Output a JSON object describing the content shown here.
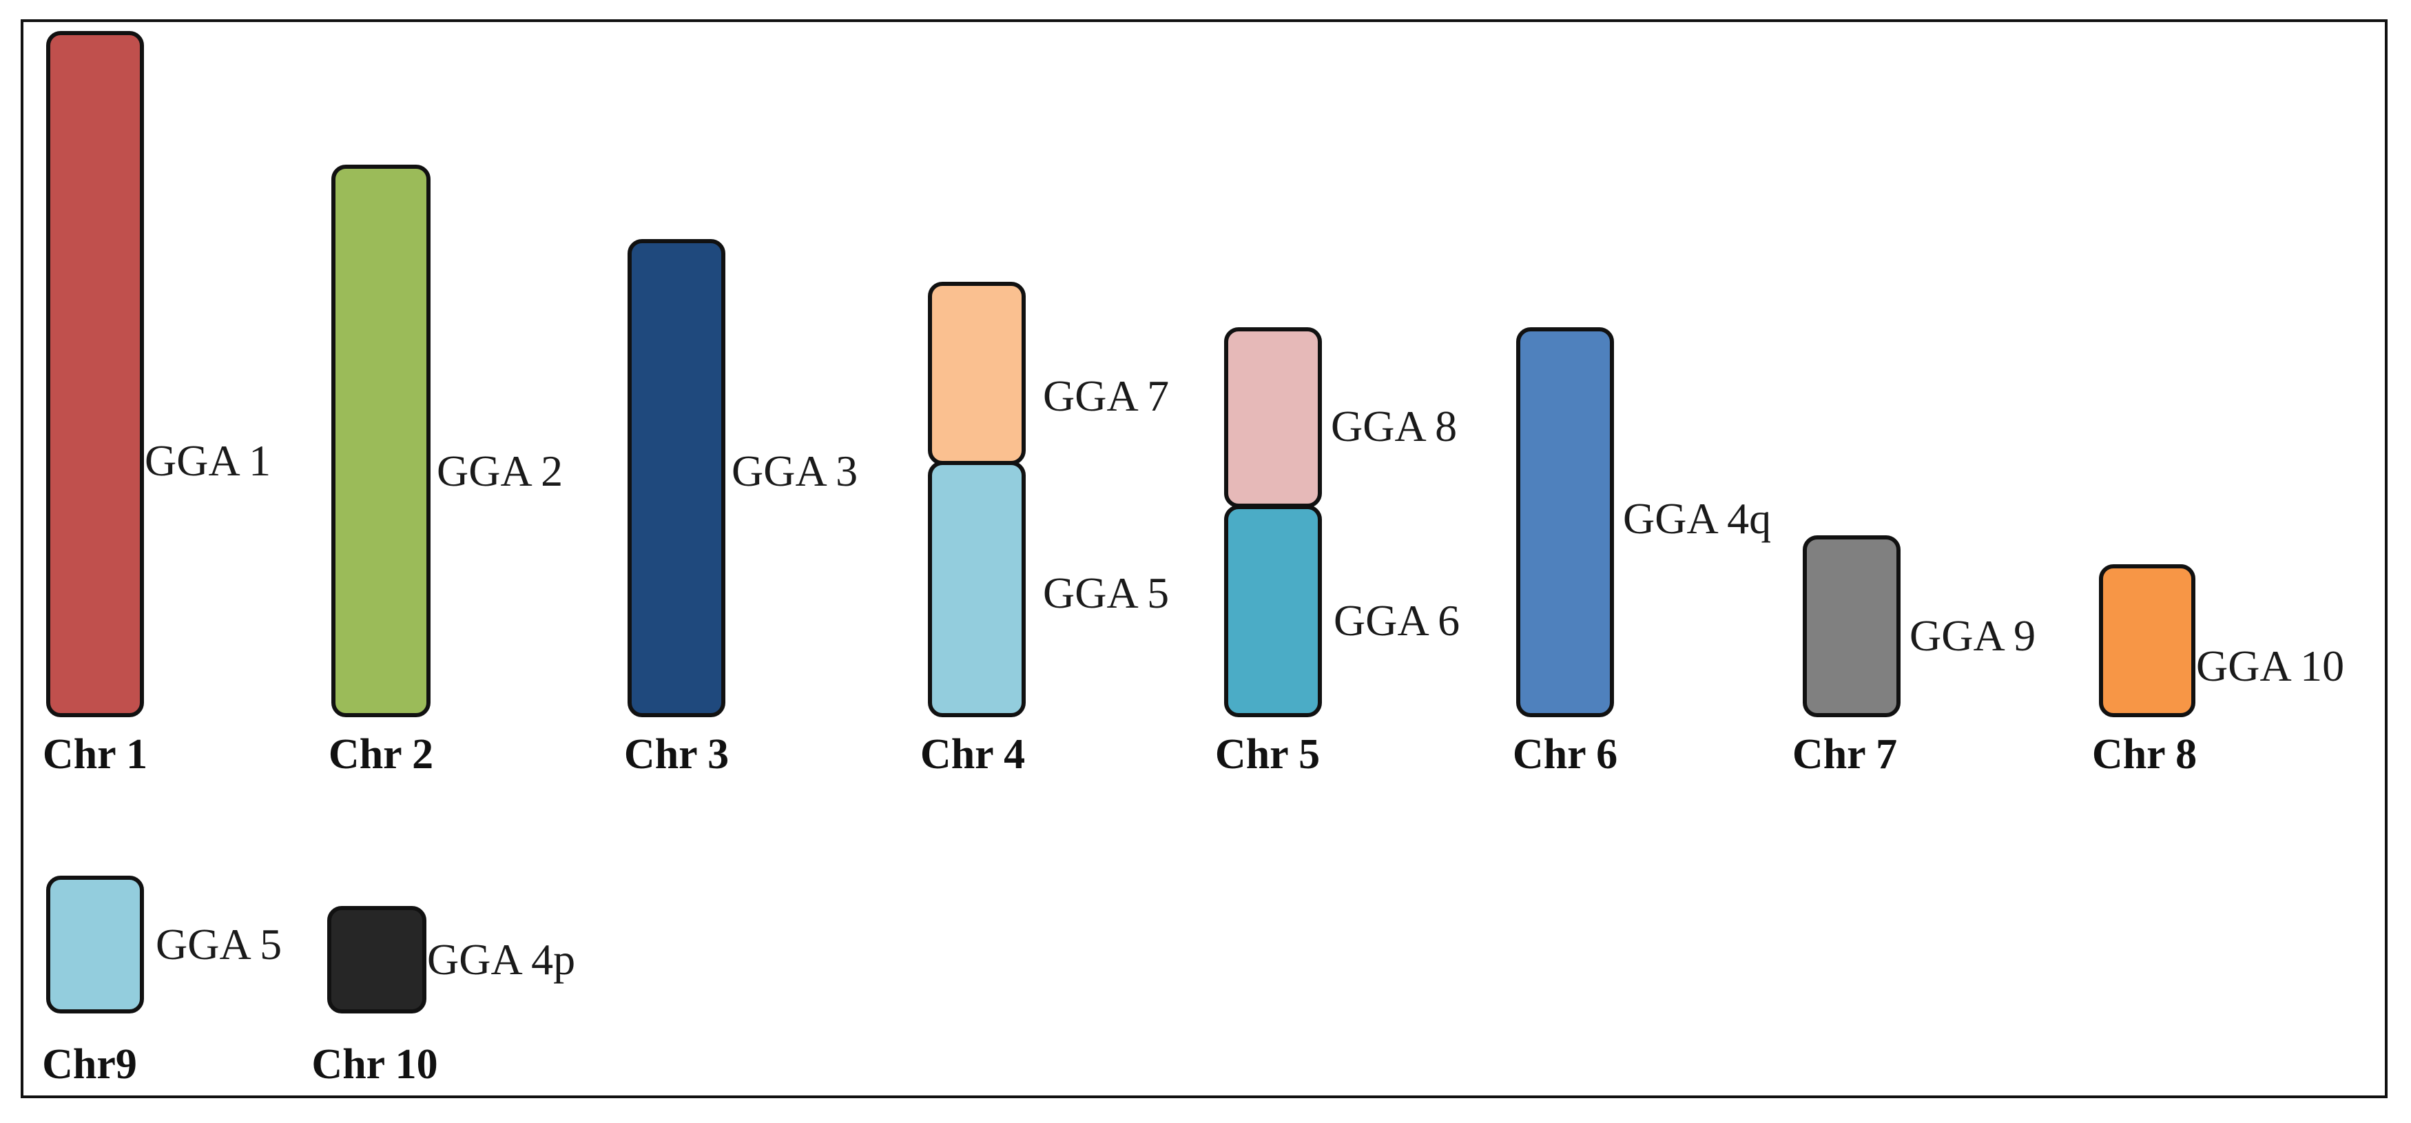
{
  "diagram": {
    "chromosomes": [
      {
        "label": "Chr 1",
        "segments": [
          {
            "label": "GGA 1",
            "color": "#C0504D"
          }
        ]
      },
      {
        "label": "Chr 2",
        "segments": [
          {
            "label": "GGA 2",
            "color": "#9BBB59"
          }
        ]
      },
      {
        "label": "Chr 3",
        "segments": [
          {
            "label": "GGA 3",
            "color": "#1F497D"
          }
        ]
      },
      {
        "label": "Chr 4",
        "segments": [
          {
            "label": "GGA 7",
            "color": "#FAC090"
          },
          {
            "label": "GGA 5",
            "color": "#93CDDD"
          }
        ]
      },
      {
        "label": "Chr 5",
        "segments": [
          {
            "label": "GGA 8",
            "color": "#E6B9B8"
          },
          {
            "label": "GGA 6",
            "color": "#4BACC6"
          }
        ]
      },
      {
        "label": "Chr 6",
        "segments": [
          {
            "label": "GGA 4q",
            "color": "#4F81BD"
          }
        ]
      },
      {
        "label": "Chr 7",
        "segments": [
          {
            "label": "GGA 9",
            "color": "#808080"
          }
        ]
      },
      {
        "label": "Chr 8",
        "segments": [
          {
            "label": "GGA 10",
            "color": "#F79646"
          }
        ]
      },
      {
        "label": "Chr9",
        "segments": [
          {
            "label": "GGA 5",
            "color": "#93CDDD"
          }
        ]
      },
      {
        "label": "Chr 10",
        "segments": [
          {
            "label": "GGA 4p",
            "color": "#262626"
          }
        ]
      }
    ]
  }
}
